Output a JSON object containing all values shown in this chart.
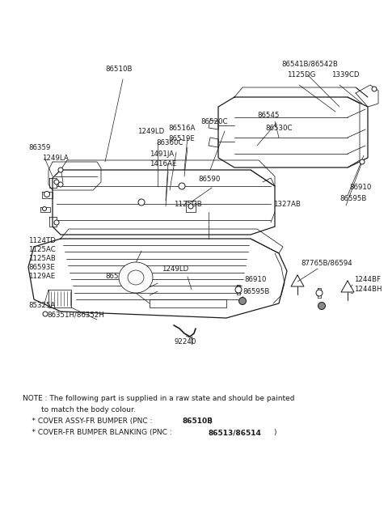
{
  "bg_color": "#ffffff",
  "fig_width": 4.8,
  "fig_height": 6.55,
  "dpi": 100,
  "note_line1": "NOTE : The following part is supplied in a raw state and should be painted",
  "note_line2": "        to match the body colour.",
  "note_bullet1": "    * COVER ASSY-FR BUMPER (PNC : ",
  "note_bullet1_bold": "86510B",
  "note_bullet1_end": ")",
  "note_bullet2": "    * COVER-FR BUMPER BLANKING (PNC : ",
  "note_bullet2_bold": "86513/86514",
  "note_bullet2_end": ")"
}
